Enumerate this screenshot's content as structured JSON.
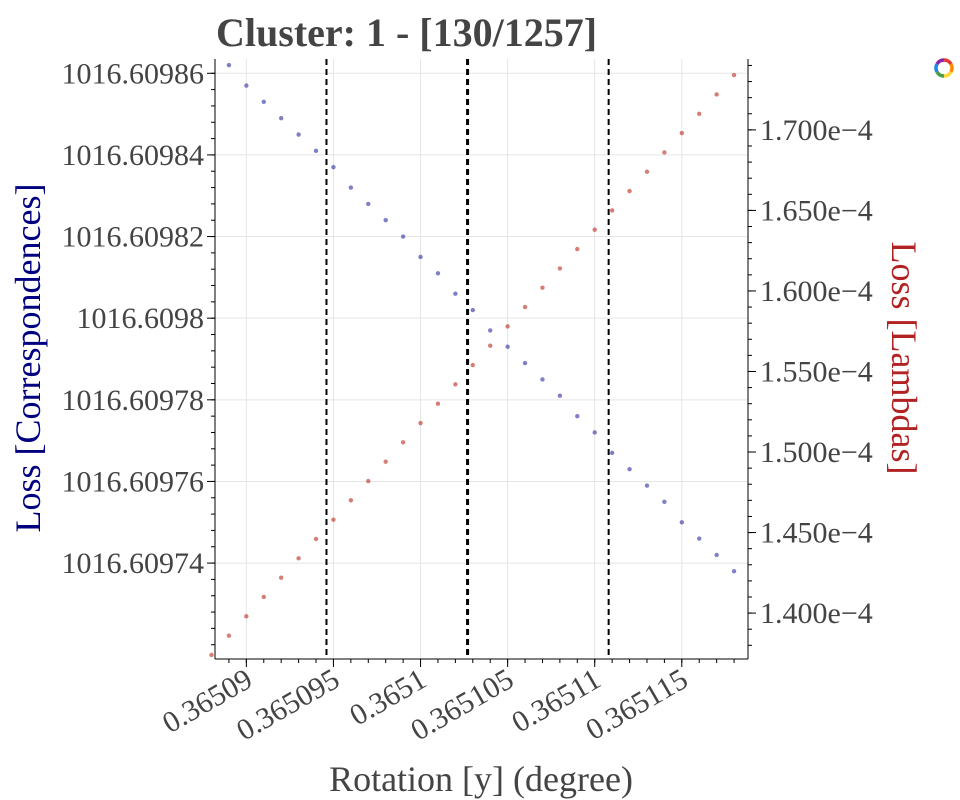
{
  "chart_data": {
    "type": "scatter",
    "title": "Cluster: 1 - [130/1257]",
    "xlabel": "Rotation [y] (degree)",
    "ylabel_left": "Loss [Correspondences]",
    "ylabel_right": "Loss [Lambdas]",
    "xlim": [
      0.3650882,
      0.3651188
    ],
    "ylim_left": [
      1016.6097165,
      1016.6098635
    ],
    "ylim_right": [
      0.00013715,
      0.0001744
    ],
    "x_ticks": [
      0.36509,
      0.365095,
      0.3651,
      0.365105,
      0.36511,
      0.365115
    ],
    "x_tick_labels": [
      "0.36509",
      "0.365095",
      "0.3651",
      "0.365105",
      "0.36511",
      "0.365115"
    ],
    "y_left_ticks": [
      1016.60974,
      1016.60976,
      1016.60978,
      1016.6098,
      1016.60982,
      1016.60984,
      1016.60986
    ],
    "y_left_tick_labels": [
      "1016.60974",
      "1016.60976",
      "1016.60978",
      "1016.6098",
      "1016.60982",
      "1016.60984",
      "1016.60986"
    ],
    "y_right_ticks": [
      0.00014,
      0.000145,
      0.00015,
      0.000155,
      0.00016,
      0.000165,
      0.00017
    ],
    "y_right_tick_labels": [
      "1.400e−4",
      "1.450e−4",
      "1.500e−4",
      "1.550e−4",
      "1.600e−4",
      "1.650e−4",
      "1.700e−4"
    ],
    "vlines": [
      {
        "x": 0.3650946,
        "style": "dashed"
      },
      {
        "x": 0.3651027,
        "style": "dashed-bold"
      },
      {
        "x": 0.3651108,
        "style": "dashed"
      }
    ],
    "grid": true,
    "series": [
      {
        "axis": "left",
        "color": "#3a3aa8",
        "x": [
          0.365089,
          0.36509,
          0.365091,
          0.365092,
          0.365093,
          0.365094,
          0.365095,
          0.365096,
          0.365097,
          0.365098,
          0.365099,
          0.3651,
          0.365101,
          0.365102,
          0.365103,
          0.365104,
          0.365105,
          0.365106,
          0.365107,
          0.365108,
          0.365109,
          0.36511,
          0.365111,
          0.365112,
          0.365113,
          0.365114,
          0.365115,
          0.365116,
          0.365117,
          0.365118
        ],
        "y": [
          1016.609862,
          1016.609857,
          1016.609853,
          1016.609849,
          1016.609845,
          1016.609841,
          1016.609837,
          1016.609832,
          1016.609828,
          1016.609824,
          1016.60982,
          1016.609815,
          1016.609811,
          1016.609806,
          1016.609802,
          1016.609797,
          1016.609793,
          1016.609789,
          1016.609785,
          1016.609781,
          1016.609776,
          1016.609772,
          1016.609767,
          1016.609763,
          1016.609759,
          1016.609755,
          1016.60975,
          1016.609746,
          1016.609742,
          1016.609738
        ]
      },
      {
        "axis": "right",
        "color": "#c0392b",
        "x": [
          0.365088,
          0.365089,
          0.36509,
          0.365091,
          0.365092,
          0.365093,
          0.365094,
          0.365095,
          0.365096,
          0.365097,
          0.365098,
          0.365099,
          0.3651,
          0.365101,
          0.365102,
          0.365103,
          0.365104,
          0.365105,
          0.365106,
          0.365107,
          0.365108,
          0.365109,
          0.36511,
          0.365111,
          0.365112,
          0.365113,
          0.365114,
          0.365115,
          0.365116,
          0.365117,
          0.365118
        ],
        "y": [
          0.0001374,
          0.0001386,
          0.0001398,
          0.000141,
          0.0001422,
          0.0001434,
          0.0001446,
          0.0001458,
          0.000147,
          0.0001482,
          0.0001494,
          0.0001506,
          0.0001518,
          0.000153,
          0.0001542,
          0.0001554,
          0.0001566,
          0.0001578,
          0.000159,
          0.0001602,
          0.0001614,
          0.0001626,
          0.0001638,
          0.000165,
          0.0001662,
          0.0001674,
          0.0001686,
          0.0001698,
          0.000171,
          0.0001722,
          0.0001734
        ]
      }
    ]
  },
  "toolbar": {
    "logo_icon": "bokeh-logo-icon",
    "logo_colors": [
      "#e53935",
      "#fb8c00",
      "#fdd835",
      "#43a047",
      "#1e88e5",
      "#8e24aa"
    ]
  }
}
